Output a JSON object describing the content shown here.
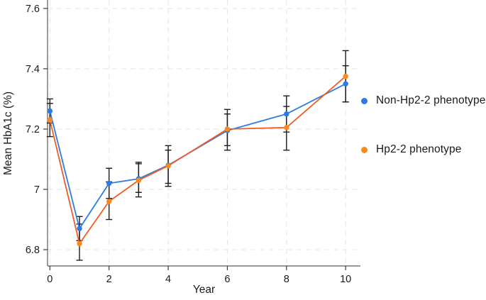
{
  "figure": {
    "background": "#ffffff"
  },
  "chart_data": {
    "type": "line",
    "title": "",
    "xlabel": "Year",
    "ylabel": "Mean HbA1c (%)",
    "x": [
      0,
      1,
      2,
      3,
      4,
      6,
      8,
      10
    ],
    "xlim": [
      -0.08,
      10.5
    ],
    "ylim": [
      6.746,
      7.628
    ],
    "xticks": [
      0,
      2,
      4,
      6,
      8,
      10
    ],
    "xtick_labels": [
      "0",
      "2",
      "4",
      "6",
      "8",
      "10"
    ],
    "yticks": [
      6.8,
      7.0,
      7.2,
      7.4,
      7.6
    ],
    "ytick_labels": [
      "6.8",
      "7",
      "7.2",
      "7.4",
      "7.6"
    ],
    "grid": "dashed-both",
    "legend_position": "right-outside",
    "error_bars": true,
    "colors": {
      "grid": "#e4e4e4",
      "axis": "#5a5a5a",
      "tick": "#3a3a3a",
      "text": "#1a1a1a",
      "error_bar": "#1c1c1c"
    },
    "series": [
      {
        "name": "Non-Hp2-2 phenotype",
        "line_color": "#2f7ce0",
        "marker_color": "#2a7ae8",
        "values": [
          7.26,
          6.87,
          7.02,
          7.035,
          7.08,
          7.195,
          7.25,
          7.35
        ],
        "ci_low": [
          7.22,
          6.83,
          6.97,
          6.99,
          7.02,
          7.13,
          7.19,
          7.29
        ],
        "ci_high": [
          7.3,
          6.91,
          7.07,
          7.09,
          7.145,
          7.25,
          7.31,
          7.41
        ]
      },
      {
        "name": "Hp2-2 phenotype",
        "line_color": "#f25c22",
        "marker_color": "#f8891e",
        "values": [
          7.23,
          6.82,
          6.96,
          7.03,
          7.078,
          7.2,
          7.205,
          7.375
        ],
        "ci_low": [
          7.175,
          6.765,
          6.9,
          6.975,
          7.01,
          7.145,
          7.13,
          7.29
        ],
        "ci_high": [
          7.285,
          6.885,
          7.025,
          7.085,
          7.13,
          7.265,
          7.275,
          7.46
        ]
      }
    ]
  }
}
